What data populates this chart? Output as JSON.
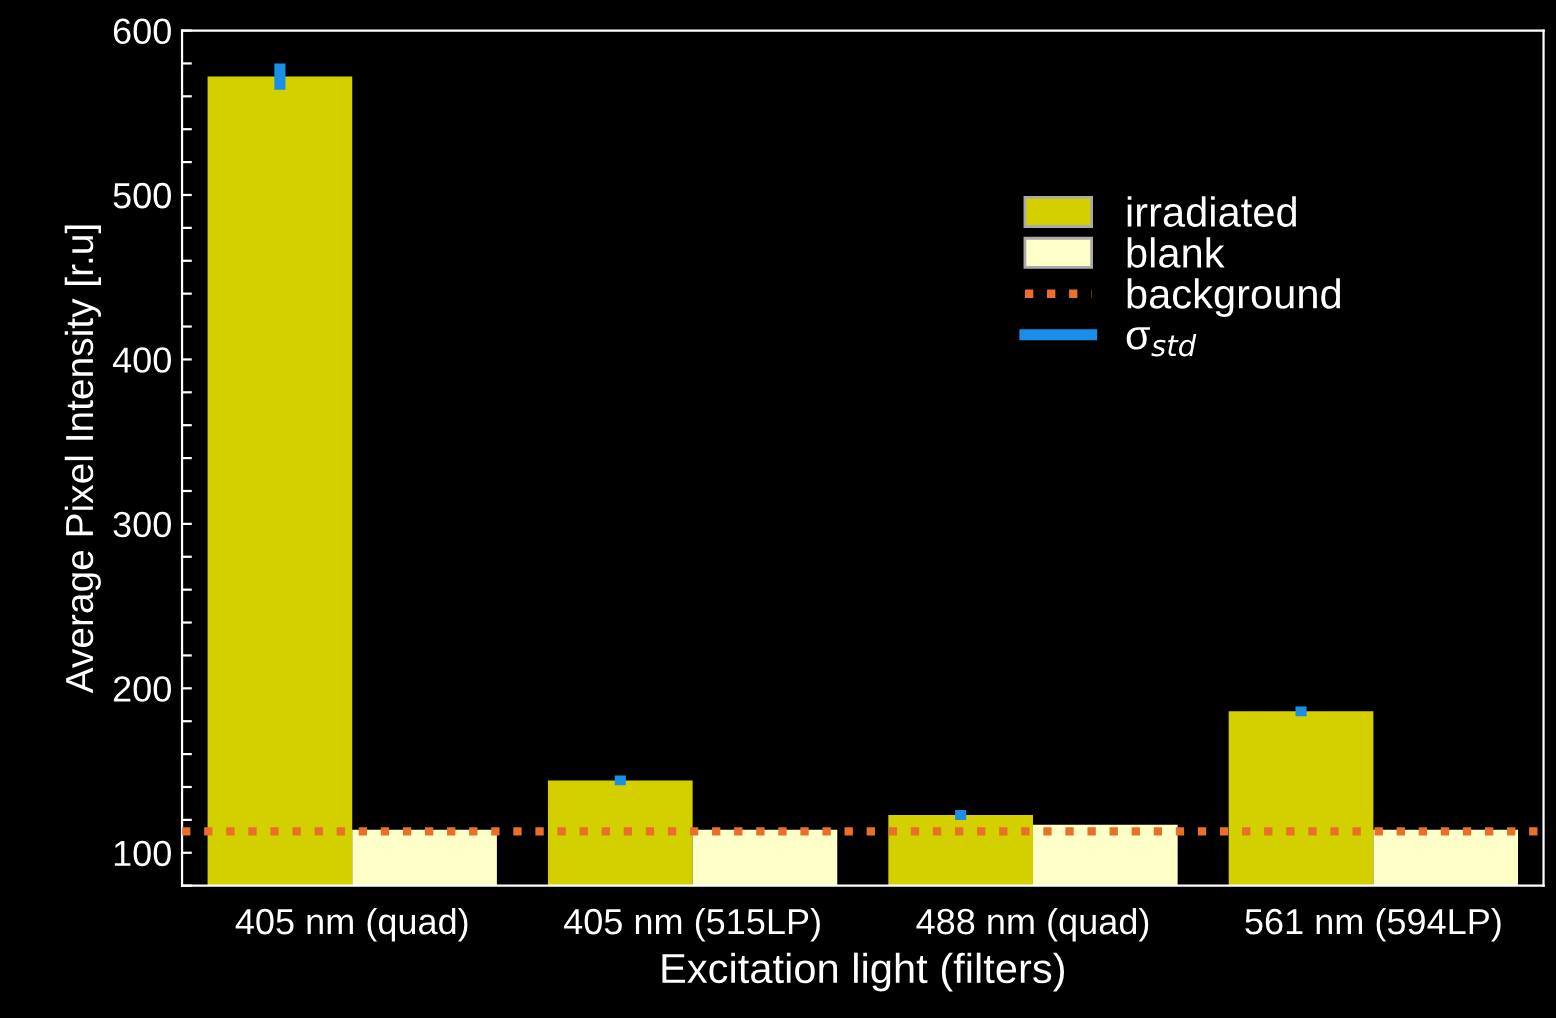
{
  "chart_data": {
    "type": "bar",
    "xlabel": "Excitation light (filters)",
    "ylabel": "Average Pixel Intensity [r.u]",
    "categories": [
      "405 nm (quad)",
      "405 nm (515LP)",
      "488 nm (quad)",
      "561 nm (594LP)"
    ],
    "series": [
      {
        "name": "irradiated",
        "color": "#d4d000",
        "values": [
          572,
          144,
          123,
          186
        ],
        "errors": [
          8,
          3,
          3,
          3
        ]
      },
      {
        "name": "blank",
        "color": "#ffffc8",
        "values": [
          114,
          114,
          117,
          114
        ]
      },
      {
        "name": "σ$_{std}$",
        "type": "line",
        "color": "#1a8fe8",
        "values": [
          null,
          null,
          null,
          null
        ]
      }
    ],
    "ylim": [
      80,
      600
    ],
    "yticks": [
      {
        "value": 80,
        "label": null
      },
      100,
      {
        "value": 120,
        "label": null
      },
      {
        "value": 140,
        "label": null
      },
      {
        "value": 160,
        "label": null
      },
      {
        "value": 180,
        "label": null
      },
      200,
      {
        "value": 220,
        "label": null
      },
      {
        "value": 240,
        "label": null
      },
      {
        "value": 260,
        "label": null
      },
      {
        "value": 280,
        "label": null
      },
      300,
      {
        "value": 320,
        "label": null
      },
      {
        "value": 340,
        "label": null
      },
      {
        "value": 360,
        "label": null
      },
      {
        "value": 380,
        "label": null
      },
      400,
      {
        "value": 420,
        "label": null
      },
      {
        "value": 440,
        "label": null
      },
      {
        "value": 460,
        "label": null
      },
      {
        "value": 480,
        "label": null
      },
      500,
      {
        "value": 520,
        "label": null
      },
      {
        "value": 540,
        "label": null
      },
      {
        "value": 560,
        "label": null
      },
      {
        "value": 580,
        "label": null
      },
      600
    ],
    "ref_lines": [
      {
        "axis": "y",
        "value": 113,
        "label": "background",
        "color": "#e8702a",
        "line_style": "dotted"
      }
    ],
    "legend": "top right",
    "grid": false
  }
}
